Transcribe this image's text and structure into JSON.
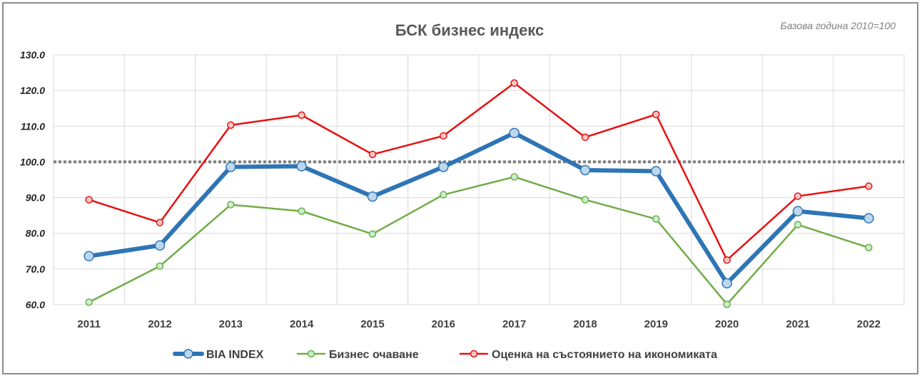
{
  "chart_data": {
    "type": "line",
    "title": "БСК бизнес индекс",
    "subtitle": "Базова година 2010=100",
    "xlabel": "",
    "ylabel": "",
    "categories": [
      "2011",
      "2012",
      "2013",
      "2014",
      "2015",
      "2016",
      "2017",
      "2018",
      "2019",
      "2020",
      "2021",
      "2022"
    ],
    "ylim": [
      60,
      130
    ],
    "yticks": [
      "60.0",
      "70.0",
      "80.0",
      "90.0",
      "100.0",
      "110.0",
      "120.0",
      "130.0"
    ],
    "reference_line": 100,
    "grid": true,
    "legend_position": "bottom",
    "series": [
      {
        "name": "BIA INDEX",
        "color": "#2e75b6",
        "marker_fill": "#bdd7ee",
        "values": [
          73.6,
          76.6,
          98.6,
          98.8,
          90.3,
          98.6,
          108.1,
          97.7,
          97.4,
          66.0,
          86.2,
          84.2
        ]
      },
      {
        "name": "Бизнес очаване",
        "color": "#70ad47",
        "marker_fill": "#c6efce",
        "values": [
          60.7,
          70.8,
          88.0,
          86.2,
          79.8,
          90.8,
          95.8,
          89.4,
          84.0,
          60.1,
          82.4,
          76.0
        ]
      },
      {
        "name": "Оценка на състоянието на икономиката",
        "color": "#e81010",
        "marker_fill": "#f8c8c8",
        "values": [
          89.4,
          83.0,
          110.3,
          113.1,
          102.1,
          107.3,
          122.1,
          106.9,
          113.3,
          72.5,
          90.4,
          93.2
        ]
      }
    ]
  }
}
